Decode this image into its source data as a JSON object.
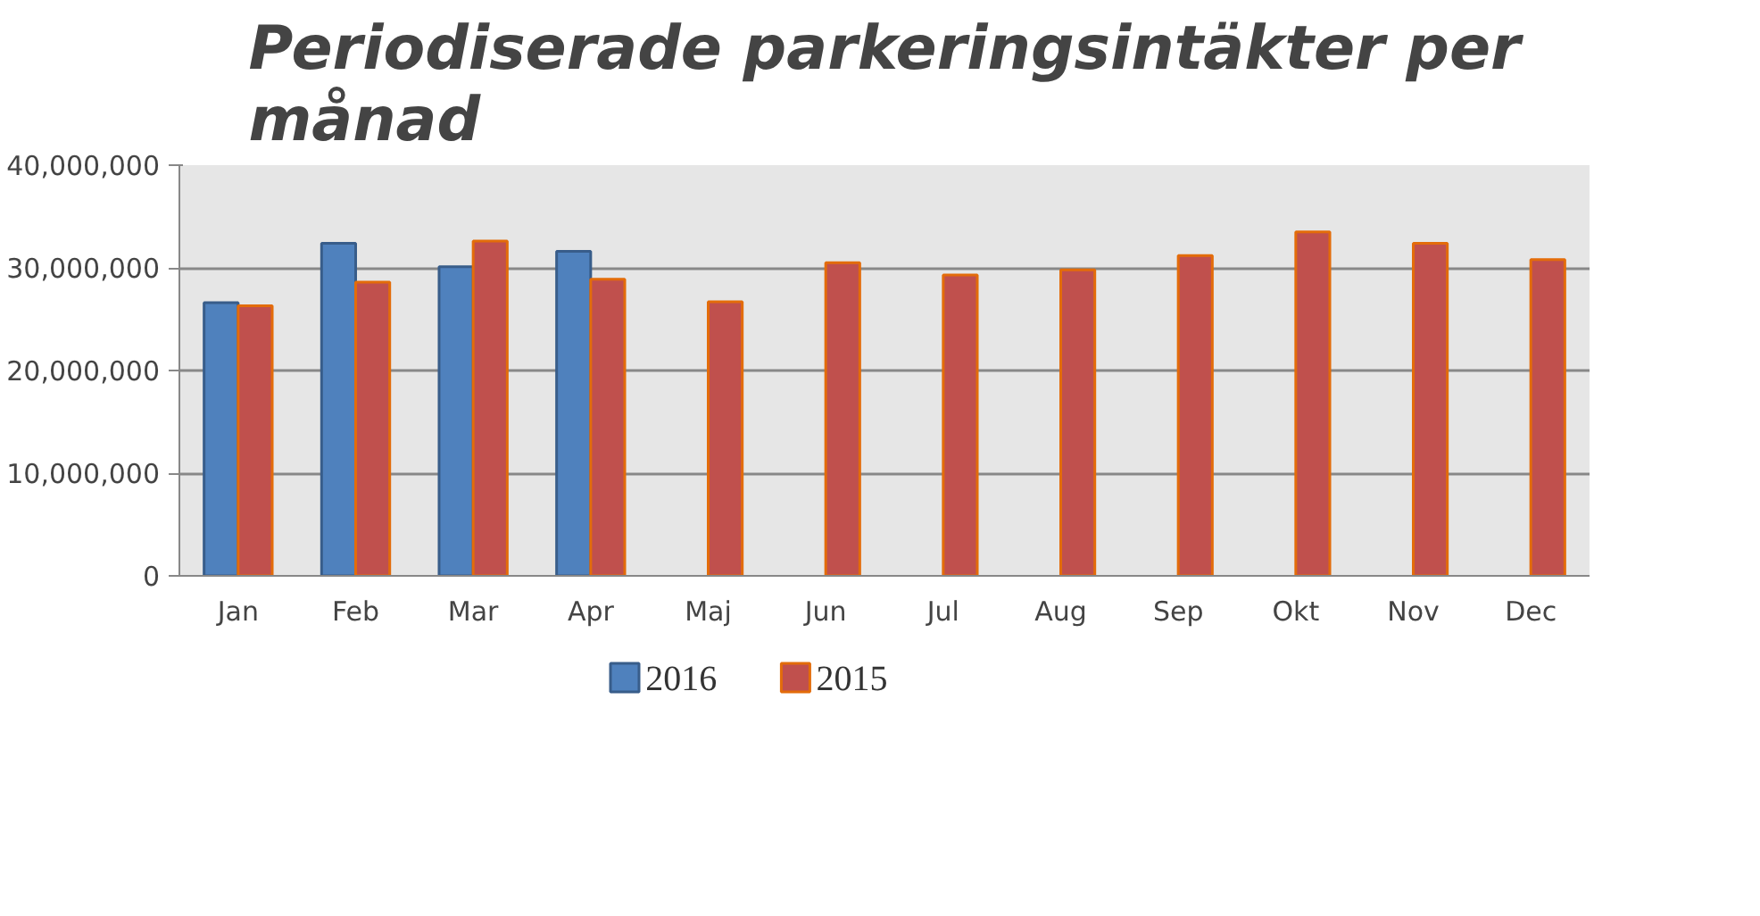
{
  "chart_data": {
    "type": "bar",
    "title": "Periodiserade parkeringsintäkter per månad",
    "categories": [
      "Jan",
      "Feb",
      "Mar",
      "Apr",
      "Maj",
      "Jun",
      "Jul",
      "Aug",
      "Sep",
      "Okt",
      "Nov",
      "Dec"
    ],
    "series": [
      {
        "name": "2016",
        "color": "#4f81bd",
        "values": [
          26600000,
          32400000,
          30100000,
          31600000,
          null,
          null,
          null,
          null,
          null,
          null,
          null,
          null
        ]
      },
      {
        "name": "2015",
        "color": "#c0504d",
        "values": [
          26300000,
          28600000,
          32600000,
          28900000,
          26700000,
          30500000,
          29300000,
          29800000,
          31200000,
          33500000,
          32400000,
          30800000
        ]
      }
    ],
    "ylim": [
      0,
      40000000
    ],
    "yticks": [
      0,
      {
        "value": 10000000,
        "label": "10,000,000"
      },
      {
        "value": 20000000,
        "label": "20,000,000"
      },
      {
        "value": 30000000,
        "label": "30,000,000"
      },
      {
        "value": 40000000,
        "label": "40,000,000"
      }
    ],
    "grid": "y",
    "legend": "bottom"
  }
}
